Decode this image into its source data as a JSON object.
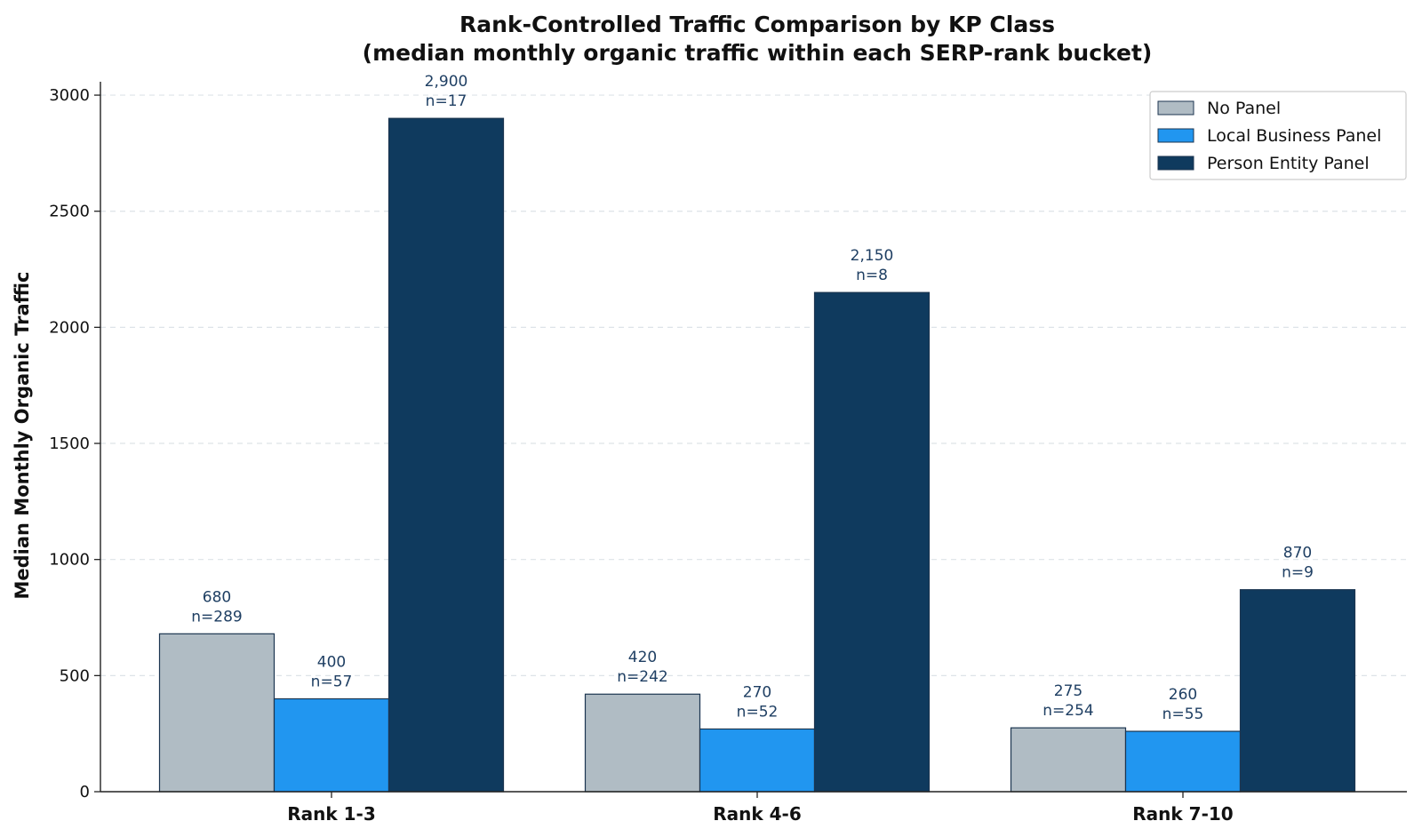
{
  "chart_data": {
    "type": "bar",
    "title": "Rank-Controlled Traffic Comparison by KP Class",
    "subtitle": "(median monthly organic traffic within each SERP-rank bucket)",
    "xlabel": "",
    "ylabel": "Median Monthly Organic Traffic",
    "categories": [
      "Rank 1-3",
      "Rank 4-6",
      "Rank 7-10"
    ],
    "ylim": [
      0,
      3050
    ],
    "yticks": [
      0,
      500,
      1000,
      1500,
      2000,
      2500,
      3000
    ],
    "grid": "horizontal dashed",
    "legend_position": "top-right",
    "series": [
      {
        "name": "No Panel",
        "color": "#b0bcc4",
        "values": [
          680,
          420,
          275
        ],
        "value_labels": [
          "680",
          "420",
          "275"
        ],
        "n_labels": [
          "n=289",
          "n=242",
          "n=254"
        ]
      },
      {
        "name": "Local Business Panel",
        "color": "#2196f0",
        "values": [
          400,
          270,
          260
        ],
        "value_labels": [
          "400",
          "270",
          "260"
        ],
        "n_labels": [
          "n=57",
          "n=52",
          "n=55"
        ]
      },
      {
        "name": "Person Entity Panel",
        "color": "#0f3a5e",
        "values": [
          2900,
          2150,
          870
        ],
        "value_labels": [
          "2,900",
          "2,150",
          "870"
        ],
        "n_labels": [
          "n=17",
          "n=8",
          "n=9"
        ]
      }
    ]
  }
}
